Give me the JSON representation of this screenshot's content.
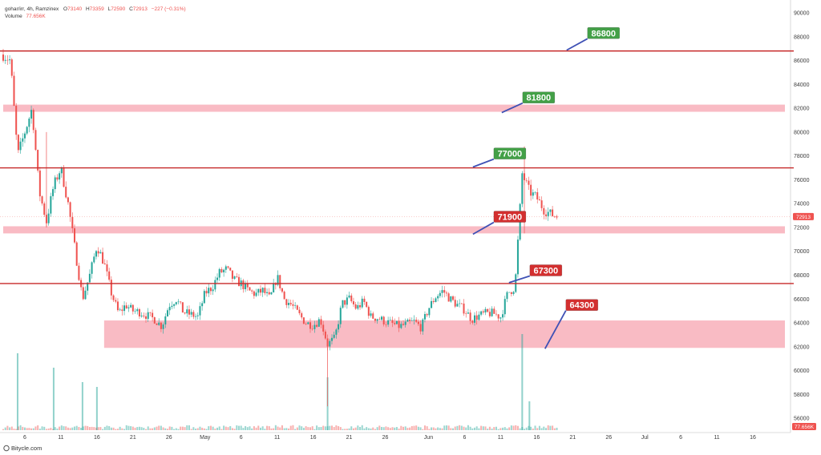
{
  "header": {
    "symbol": "gohar/irr, 4h, Ramzinex",
    "o_label": "O",
    "o_value": "73140",
    "h_label": "H",
    "h_value": "73359",
    "l_label": "L",
    "l_value": "72590",
    "c_label": "C",
    "c_value": "72913",
    "change": "−227 (−0.31%)",
    "volume_label": "Volume",
    "volume_value": "77.656K"
  },
  "watermark": "Bitycle.com",
  "colors": {
    "up": "#26a69a",
    "down": "#ef5350",
    "line": "#c62828",
    "zone": "#f8b4be",
    "badge_green": "#43a047",
    "badge_red": "#d32f2f",
    "badge_blue": "#3f51b5"
  },
  "chart_data": {
    "type": "candlestick",
    "interval": "4h",
    "ylim": [
      55000,
      90000
    ],
    "yticks": [
      56000,
      58000,
      60000,
      62000,
      64000,
      66000,
      68000,
      70000,
      72000,
      74000,
      76000,
      78000,
      80000,
      82000,
      84000,
      86000,
      88000,
      90000
    ],
    "xlim_days": [
      0,
      109
    ],
    "xticks": [
      {
        "label": "6",
        "day": 3
      },
      {
        "label": "11",
        "day": 8
      },
      {
        "label": "16",
        "day": 13
      },
      {
        "label": "21",
        "day": 18
      },
      {
        "label": "26",
        "day": 23
      },
      {
        "label": "May",
        "day": 28
      },
      {
        "label": "6",
        "day": 33
      },
      {
        "label": "11",
        "day": 38
      },
      {
        "label": "16",
        "day": 43
      },
      {
        "label": "21",
        "day": 48
      },
      {
        "label": "26",
        "day": 53
      },
      {
        "label": "Jun",
        "day": 59
      },
      {
        "label": "6",
        "day": 64
      },
      {
        "label": "11",
        "day": 69
      },
      {
        "label": "16",
        "day": 74
      },
      {
        "label": "21",
        "day": 79
      },
      {
        "label": "26",
        "day": 84
      },
      {
        "label": "Jul",
        "day": 89
      },
      {
        "label": "6",
        "day": 94
      },
      {
        "label": "11",
        "day": 99
      },
      {
        "label": "16",
        "day": 104
      }
    ],
    "close_path": [
      [
        0,
        86500
      ],
      [
        1,
        86000
      ],
      [
        2,
        78000
      ],
      [
        3,
        80000
      ],
      [
        4,
        82000
      ],
      [
        5,
        75000
      ],
      [
        6,
        72500
      ],
      [
        7,
        75500
      ],
      [
        8,
        77000
      ],
      [
        9,
        74000
      ],
      [
        10,
        70000
      ],
      [
        11,
        66000
      ],
      [
        12,
        68000
      ],
      [
        13,
        70500
      ],
      [
        14,
        69000
      ],
      [
        15,
        66500
      ],
      [
        16,
        64800
      ],
      [
        17,
        65500
      ],
      [
        18,
        65000
      ],
      [
        19,
        64900
      ],
      [
        20,
        64600
      ],
      [
        21,
        64300
      ],
      [
        22,
        63700
      ],
      [
        23,
        65500
      ],
      [
        24,
        66000
      ],
      [
        25,
        64900
      ],
      [
        26,
        64700
      ],
      [
        27,
        64500
      ],
      [
        28,
        66500
      ],
      [
        29,
        67000
      ],
      [
        30,
        68200
      ],
      [
        31,
        68500
      ],
      [
        32,
        67600
      ],
      [
        33,
        67300
      ],
      [
        34,
        66700
      ],
      [
        35,
        66400
      ],
      [
        36,
        66700
      ],
      [
        37,
        66000
      ],
      [
        38,
        67900
      ],
      [
        39,
        66000
      ],
      [
        40,
        65500
      ],
      [
        41,
        64700
      ],
      [
        42,
        64000
      ],
      [
        43,
        63800
      ],
      [
        44,
        64300
      ],
      [
        45,
        62200
      ],
      [
        46,
        62700
      ],
      [
        47,
        65600
      ],
      [
        48,
        66000
      ],
      [
        49,
        65200
      ],
      [
        50,
        65800
      ],
      [
        51,
        64500
      ],
      [
        52,
        64400
      ],
      [
        53,
        64100
      ],
      [
        54,
        63900
      ],
      [
        55,
        63700
      ],
      [
        56,
        63900
      ],
      [
        57,
        64100
      ],
      [
        58,
        63600
      ],
      [
        59,
        65200
      ],
      [
        60,
        66200
      ],
      [
        61,
        66700
      ],
      [
        62,
        66000
      ],
      [
        63,
        65500
      ],
      [
        64,
        65100
      ],
      [
        65,
        64300
      ],
      [
        66,
        64600
      ],
      [
        67,
        64800
      ],
      [
        68,
        64800
      ],
      [
        69,
        64500
      ],
      [
        70,
        66500
      ],
      [
        71,
        67000
      ],
      [
        72,
        76500
      ],
      [
        73,
        75000
      ],
      [
        74,
        74500
      ],
      [
        75,
        73500
      ],
      [
        76,
        73100
      ],
      [
        77,
        72913
      ]
    ],
    "candle_step": 0.3,
    "volume": {
      "max": 100,
      "spikes": [
        {
          "day": 2,
          "value": 80
        },
        {
          "day": 7,
          "value": 65
        },
        {
          "day": 11,
          "value": 50
        },
        {
          "day": 13,
          "value": 45
        },
        {
          "day": 45,
          "value": 55
        },
        {
          "day": 72,
          "value": 100
        },
        {
          "day": 73,
          "value": 30
        }
      ],
      "last_value_label": "77.656K"
    },
    "last_price_label": "72913",
    "levels": [
      {
        "type": "line",
        "price": 86800,
        "label": "86800",
        "label_day": 81.5,
        "label_price": 88300,
        "badge": "green"
      },
      {
        "type": "zone",
        "price_from": 81700,
        "price_to": 82300,
        "label": "81800",
        "label_day": 72.5,
        "label_price": 82900,
        "badge": "green"
      },
      {
        "type": "line",
        "price": 77000,
        "label": "77000",
        "label_day": 68.5,
        "label_price": 78200,
        "badge": "green"
      },
      {
        "type": "zone",
        "price_from": 71500,
        "price_to": 72100,
        "label": "71900",
        "label_day": 68.5,
        "label_price": 72900,
        "badge": "red"
      },
      {
        "type": "line",
        "price": 67300,
        "label": "67300",
        "label_day": 73.5,
        "label_price": 68400,
        "badge": "red"
      },
      {
        "type": "zone",
        "price_from": 61900,
        "price_to": 64200,
        "label": "64300",
        "label_day": 78.5,
        "label_price": 65500,
        "badge": "red",
        "zone_start_day": 14
      }
    ]
  }
}
